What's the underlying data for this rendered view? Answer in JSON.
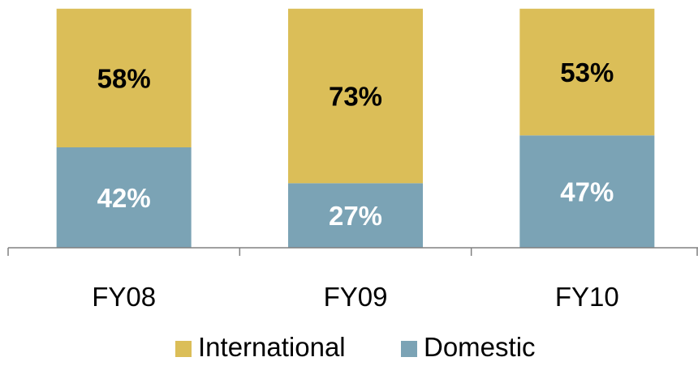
{
  "chart_data": {
    "type": "bar",
    "stacked": true,
    "categories": [
      "FY08",
      "FY09",
      "FY10"
    ],
    "series": [
      {
        "name": "Domestic",
        "values": [
          42,
          27,
          47
        ],
        "labels": [
          "42%",
          "27%",
          "47%"
        ],
        "color": "#7BA3B5",
        "label_color": "#FFFFFF"
      },
      {
        "name": "International",
        "values": [
          58,
          73,
          53
        ],
        "labels": [
          "58%",
          "73%",
          "53%"
        ],
        "color": "#DBBE58",
        "label_color": "#000000"
      }
    ],
    "legend_order": [
      "International",
      "Domestic"
    ],
    "ylim": [
      0,
      100
    ],
    "legend_position": "bottom",
    "grid": false
  }
}
